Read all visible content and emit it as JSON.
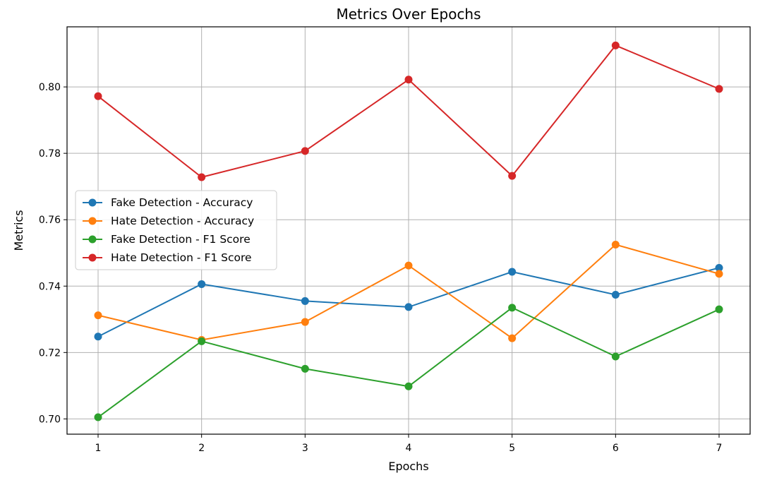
{
  "chart_data": {
    "type": "line",
    "title": "Metrics Over Epochs",
    "xlabel": "Epochs",
    "ylabel": "Metrics",
    "x": [
      1,
      2,
      3,
      4,
      5,
      6,
      7
    ],
    "xticks": [
      "1",
      "2",
      "3",
      "4",
      "5",
      "6",
      "7"
    ],
    "xlim": [
      0.7,
      7.3
    ],
    "yticks": [
      "0.70",
      "0.72",
      "0.74",
      "0.76",
      "0.78",
      "0.80"
    ],
    "ytick_values": [
      0.7,
      0.72,
      0.74,
      0.76,
      0.78,
      0.8
    ],
    "ylim": [
      0.6954,
      0.8181
    ],
    "grid": true,
    "legend_position": "center-left",
    "series": [
      {
        "name": "Fake Detection - Accuracy",
        "color": "#1f77b4",
        "values": [
          0.7248,
          0.7406,
          0.7355,
          0.7337,
          0.7443,
          0.7374,
          0.7455
        ]
      },
      {
        "name": "Hate Detection - Accuracy",
        "color": "#ff7f0e",
        "values": [
          0.7312,
          0.7238,
          0.7292,
          0.7462,
          0.7243,
          0.7525,
          0.7437
        ]
      },
      {
        "name": "Fake Detection - F1 Score",
        "color": "#2ca02c",
        "values": [
          0.7005,
          0.7234,
          0.7151,
          0.7098,
          0.7335,
          0.7188,
          0.733
        ]
      },
      {
        "name": "Hate Detection - F1 Score",
        "color": "#d62728",
        "values": [
          0.7972,
          0.7728,
          0.7807,
          0.8022,
          0.7732,
          0.8125,
          0.7994
        ]
      }
    ]
  }
}
